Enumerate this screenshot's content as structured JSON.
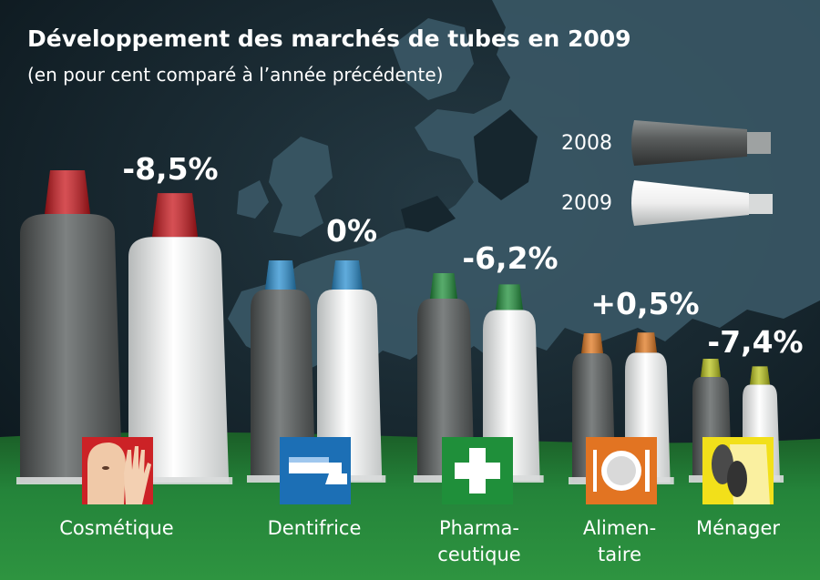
{
  "title": "Développement des marchés de tubes en 2009",
  "subtitle": "(en pour cent comparé à l’année précédente)",
  "legend": [
    {
      "label": "2008",
      "fill": "#5f6262"
    },
    {
      "label": "2009",
      "fill": "#f2f2f2"
    }
  ],
  "colors": {
    "background": "#0f1d24",
    "map": "#3a5866",
    "ground": "#238035",
    "tube_2008": "#5f6262",
    "tube_2009": "#f2f2f2"
  },
  "chart_data": {
    "type": "bar",
    "categories": [
      "Cosmétique",
      "Dentifrice",
      "Pharmaceutique",
      "Alimentaire",
      "Ménager"
    ],
    "series": [
      {
        "name": "2009",
        "values": [
          -8.5,
          0,
          -6.2,
          0.5,
          -7.4
        ]
      }
    ],
    "data_labels": [
      "-8,5%",
      "0%",
      "-6,2%",
      "+0,5%",
      "-7,4%"
    ],
    "unit": "%"
  },
  "categories": [
    {
      "lines": [
        "Cosmétique"
      ],
      "cap_color": "#c8151b",
      "icon": "face-hand-icon",
      "icon_bg": "#cc2226"
    },
    {
      "lines": [
        "Dentifrice"
      ],
      "cap_color": "#2a8fd0",
      "icon": "toothbrush-icon",
      "icon_bg": "#1c6fb5"
    },
    {
      "lines": [
        "Pharma-",
        "ceutique"
      ],
      "cap_color": "#1f8f3a",
      "icon": "medical-cross-icon",
      "icon_bg": "#1f8f3a"
    },
    {
      "lines": [
        "Alimen-",
        "taire"
      ],
      "cap_color": "#e07820",
      "icon": "plate-cutlery-icon",
      "icon_bg": "#e27422"
    },
    {
      "lines": [
        "Ménager"
      ],
      "cap_color": "#b8c21a",
      "icon": "shoes-shirt-icon",
      "icon_bg": "#f2e01a"
    }
  ]
}
